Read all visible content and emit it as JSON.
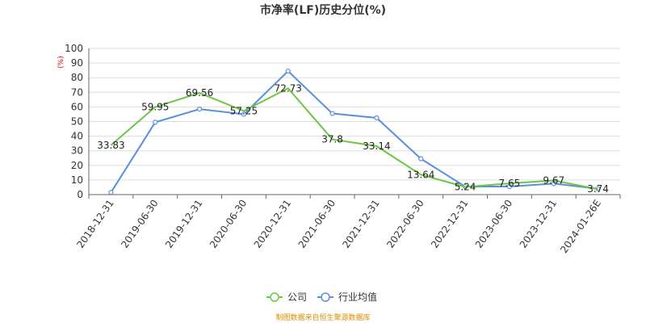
{
  "chart_data": {
    "type": "line",
    "title": "市净率(LF)历史分位(%)",
    "ylabel": "(%)",
    "ylim": [
      0,
      100
    ],
    "yticks": [
      0,
      10,
      20,
      30,
      40,
      50,
      60,
      70,
      80,
      90,
      100
    ],
    "grid": true,
    "categories": [
      "2018-12-31",
      "2019-06-30",
      "2019-12-31",
      "2020-06-30",
      "2020-12-31",
      "2021-06-30",
      "2021-12-31",
      "2022-06-30",
      "2022-12-31",
      "2023-06-30",
      "2023-12-31",
      "2024-01-26E"
    ],
    "series": [
      {
        "name": "公司",
        "color": "#6cc644",
        "values": [
          33.83,
          59.95,
          69.56,
          57.25,
          72.73,
          37.8,
          33.14,
          13.64,
          5.24,
          7.65,
          9.67,
          3.74
        ],
        "labels": [
          "33.83",
          "59.95",
          "69.56",
          "57.25",
          "72.73",
          "37.8",
          "33.14",
          "13.64",
          "5.24",
          "7.65",
          "9.67",
          "3.74"
        ]
      },
      {
        "name": "行业均值",
        "color": "#5b8ee0",
        "values": [
          1.5,
          49.5,
          58.5,
          55.0,
          84.5,
          55.5,
          52.5,
          24.5,
          5.5,
          5.5,
          7.5,
          4.0
        ]
      }
    ],
    "legend_position": "bottom-center",
    "source": "制图数据来自恒生聚源数据库"
  }
}
